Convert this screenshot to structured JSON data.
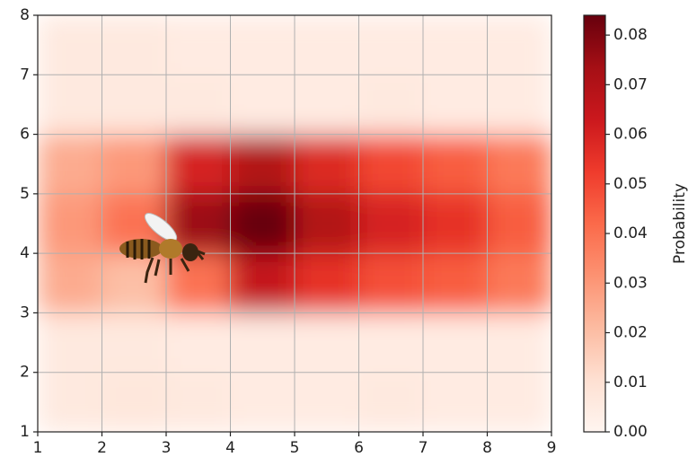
{
  "chart_data": {
    "type": "heatmap",
    "colorbar_label": "Probability",
    "colormap": "Reds",
    "clim": [
      0,
      0.084
    ],
    "xbins": [
      1,
      2,
      3,
      4,
      5,
      6,
      7,
      8,
      9
    ],
    "ybins": [
      1,
      2,
      3,
      4,
      5,
      6,
      7,
      8
    ],
    "values": [
      [
        0.006,
        0.007,
        0.006,
        0.005,
        0.005,
        0.006,
        0.005,
        0.005
      ],
      [
        0.006,
        0.006,
        0.005,
        0.005,
        0.005,
        0.005,
        0.005,
        0.005
      ],
      [
        0.025,
        0.02,
        0.04,
        0.065,
        0.055,
        0.048,
        0.045,
        0.038
      ],
      [
        0.03,
        0.04,
        0.075,
        0.084,
        0.07,
        0.06,
        0.055,
        0.045
      ],
      [
        0.025,
        0.03,
        0.06,
        0.07,
        0.058,
        0.05,
        0.045,
        0.038
      ],
      [
        0.006,
        0.006,
        0.006,
        0.005,
        0.005,
        0.006,
        0.005,
        0.005
      ],
      [
        0.006,
        0.006,
        0.005,
        0.005,
        0.005,
        0.005,
        0.005,
        0.005
      ]
    ],
    "xlim": [
      1,
      9
    ],
    "xticks": [
      1,
      2,
      3,
      4,
      5,
      6,
      7,
      8,
      9
    ],
    "ylim": [
      1,
      8
    ],
    "yticks": [
      1,
      2,
      3,
      4,
      5,
      6,
      7,
      8
    ],
    "cticks": [
      {
        "value": 0,
        "label": "0.00"
      },
      0.01,
      0.02,
      0.03,
      0.04,
      0.05,
      0.06,
      0.07,
      0.08
    ],
    "grid": true
  }
}
